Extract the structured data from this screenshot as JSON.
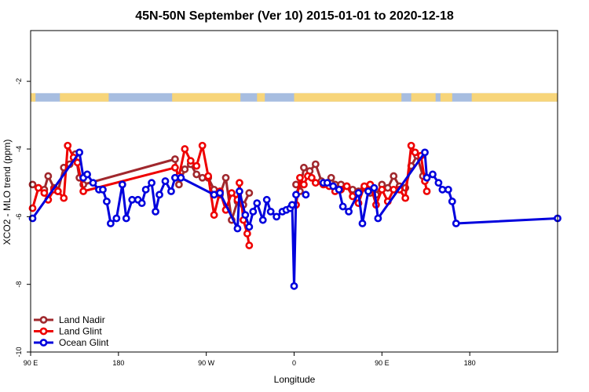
{
  "chart_data": {
    "type": "line",
    "title": "45N-50N September (Ver 10)   2015-01-01 to 2020-12-18",
    "xlabel": "Longitude",
    "ylabel": "XCO2 - MLO trend (ppm)",
    "xlim": [
      0,
      540
    ],
    "ylim": [
      -10,
      -0.5
    ],
    "x_ticks": [
      {
        "value": 0,
        "label": "90 E"
      },
      {
        "value": 90,
        "label": "180"
      },
      {
        "value": 180,
        "label": "90 W"
      },
      {
        "value": 270,
        "label": "0"
      },
      {
        "value": 360,
        "label": "90 E"
      },
      {
        "value": 450,
        "label": "180"
      }
    ],
    "y_ticks": [
      {
        "value": -2,
        "label": "-2"
      },
      {
        "value": -4,
        "label": "-4"
      },
      {
        "value": -6,
        "label": "-6"
      },
      {
        "value": -8,
        "label": "-8"
      },
      {
        "value": -10,
        "label": "-10"
      }
    ],
    "land_ocean_strip": {
      "y_range": [
        -2.6,
        -2.35
      ],
      "land_color": "#f7d57a",
      "ocean_color": "#a7bde0",
      "land_segments": [
        [
          0,
          5
        ],
        [
          30,
          80
        ],
        [
          145,
          215
        ],
        [
          232,
          240
        ],
        [
          270,
          380
        ],
        [
          390,
          415
        ],
        [
          420,
          432
        ],
        [
          452,
          540
        ]
      ]
    },
    "legend": {
      "position": "bottom-left",
      "entries": [
        "Land Nadir",
        "Land Glint",
        "Ocean Glint"
      ]
    },
    "series": [
      {
        "name": "Land Nadir",
        "color": "#a0282d",
        "segments": [
          [
            [
              2,
              -5.05
            ],
            [
              8,
              -5.15
            ],
            [
              14,
              -5.2
            ],
            [
              18,
              -4.8
            ],
            [
              24,
              -5.15
            ],
            [
              28,
              -5.25
            ],
            [
              34,
              -4.55
            ],
            [
              40,
              -4.45
            ],
            [
              46,
              -4.15
            ],
            [
              50,
              -4.85
            ],
            [
              54,
              -5.05
            ],
            [
              148,
              -4.3
            ],
            [
              152,
              -5.05
            ],
            [
              158,
              -4.6
            ],
            [
              164,
              -4.45
            ],
            [
              170,
              -4.75
            ],
            [
              176,
              -4.85
            ],
            [
              182,
              -4.85
            ],
            [
              188,
              -5.2
            ],
            [
              194,
              -5.35
            ],
            [
              200,
              -4.85
            ],
            [
              206,
              -6.1
            ],
            [
              212,
              -5.55
            ],
            [
              218,
              -5.65
            ],
            [
              224,
              -5.3
            ]
          ],
          [
            [
              272,
              -5.05
            ],
            [
              276,
              -5.25
            ],
            [
              280,
              -4.55
            ],
            [
              286,
              -4.65
            ],
            [
              292,
              -4.45
            ],
            [
              298,
              -4.95
            ],
            [
              304,
              -5.05
            ],
            [
              308,
              -4.85
            ],
            [
              312,
              -5.05
            ],
            [
              318,
              -5.05
            ],
            [
              324,
              -5.1
            ],
            [
              330,
              -5.2
            ],
            [
              336,
              -5.25
            ],
            [
              342,
              -5.15
            ],
            [
              348,
              -5.3
            ],
            [
              354,
              -5.35
            ],
            [
              360,
              -5.05
            ],
            [
              366,
              -5.15
            ],
            [
              372,
              -4.8
            ],
            [
              378,
              -5.1
            ],
            [
              384,
              -5.15
            ],
            [
              390,
              -4.5
            ],
            [
              396,
              -4.2
            ],
            [
              402,
              -4.8
            ],
            [
              406,
              -4.85
            ]
          ]
        ]
      },
      {
        "name": "Land Glint",
        "color": "#ee0000",
        "segments": [
          [
            [
              2,
              -5.75
            ],
            [
              8,
              -5.15
            ],
            [
              14,
              -5.3
            ],
            [
              18,
              -5.5
            ],
            [
              24,
              -5.2
            ],
            [
              28,
              -5.25
            ],
            [
              34,
              -5.45
            ],
            [
              38,
              -3.9
            ],
            [
              44,
              -4.25
            ],
            [
              48,
              -4.4
            ],
            [
              54,
              -5.25
            ],
            [
              148,
              -4.55
            ],
            [
              152,
              -4.8
            ],
            [
              158,
              -4.0
            ],
            [
              164,
              -4.35
            ],
            [
              170,
              -4.5
            ],
            [
              176,
              -3.9
            ],
            [
              182,
              -4.8
            ],
            [
              188,
              -5.95
            ],
            [
              194,
              -5.25
            ],
            [
              200,
              -5.8
            ],
            [
              206,
              -5.3
            ],
            [
              212,
              -5.5
            ],
            [
              214,
              -5.0
            ],
            [
              218,
              -6.1
            ],
            [
              222,
              -6.5
            ],
            [
              224,
              -6.85
            ]
          ],
          [
            [
              272,
              -5.65
            ],
            [
              276,
              -4.85
            ],
            [
              280,
              -5.05
            ],
            [
              284,
              -4.8
            ],
            [
              288,
              -4.85
            ],
            [
              292,
              -5.0
            ],
            [
              300,
              -5.05
            ],
            [
              306,
              -5.1
            ],
            [
              312,
              -5.25
            ],
            [
              318,
              -5.2
            ],
            [
              324,
              -5.1
            ],
            [
              330,
              -5.4
            ],
            [
              336,
              -5.6
            ],
            [
              342,
              -5.1
            ],
            [
              348,
              -5.05
            ],
            [
              354,
              -5.65
            ],
            [
              360,
              -5.2
            ],
            [
              366,
              -5.55
            ],
            [
              372,
              -5.2
            ],
            [
              378,
              -5.2
            ],
            [
              384,
              -5.45
            ],
            [
              390,
              -3.9
            ],
            [
              394,
              -4.1
            ],
            [
              400,
              -4.2
            ],
            [
              404,
              -4.95
            ],
            [
              406,
              -5.25
            ]
          ]
        ]
      },
      {
        "name": "Ocean Glint",
        "color": "#0000dd",
        "segments": [
          [
            [
              2,
              -6.05
            ],
            [
              50,
              -4.1
            ],
            [
              54,
              -4.85
            ],
            [
              58,
              -4.75
            ],
            [
              64,
              -5.0
            ],
            [
              70,
              -5.2
            ],
            [
              74,
              -5.2
            ],
            [
              78,
              -5.55
            ],
            [
              82,
              -6.2
            ],
            [
              88,
              -6.05
            ],
            [
              94,
              -5.05
            ],
            [
              98,
              -6.05
            ],
            [
              104,
              -5.5
            ],
            [
              110,
              -5.5
            ],
            [
              114,
              -5.6
            ],
            [
              118,
              -5.2
            ],
            [
              124,
              -5.0
            ],
            [
              128,
              -5.85
            ],
            [
              132,
              -5.35
            ],
            [
              138,
              -4.95
            ],
            [
              144,
              -5.25
            ],
            [
              148,
              -4.85
            ],
            [
              154,
              -4.85
            ],
            [
              188,
              -5.35
            ],
            [
              194,
              -5.3
            ],
            [
              212,
              -6.35
            ],
            [
              214,
              -5.25
            ],
            [
              220,
              -5.95
            ],
            [
              224,
              -6.3
            ],
            [
              228,
              -5.85
            ],
            [
              232,
              -5.6
            ],
            [
              238,
              -6.1
            ],
            [
              242,
              -5.5
            ],
            [
              246,
              -5.85
            ],
            [
              252,
              -6.0
            ],
            [
              258,
              -5.85
            ],
            [
              262,
              -5.8
            ],
            [
              266,
              -5.75
            ],
            [
              268,
              -5.65
            ],
            [
              270,
              -8.05
            ],
            [
              272,
              -5.35
            ]
          ],
          [
            [
              282,
              -5.35
            ]
          ],
          [
            [
              300,
              -5.0
            ],
            [
              304,
              -5.0
            ],
            [
              310,
              -5.1
            ],
            [
              316,
              -5.2
            ],
            [
              320,
              -5.7
            ],
            [
              326,
              -5.85
            ],
            [
              336,
              -5.3
            ],
            [
              340,
              -6.2
            ],
            [
              346,
              -5.25
            ],
            [
              352,
              -5.15
            ],
            [
              356,
              -6.05
            ],
            [
              404,
              -4.1
            ],
            [
              406,
              -4.85
            ],
            [
              412,
              -4.75
            ],
            [
              418,
              -5.0
            ],
            [
              422,
              -5.2
            ],
            [
              428,
              -5.2
            ],
            [
              432,
              -5.55
            ],
            [
              436,
              -6.2
            ],
            [
              540,
              -6.05
            ]
          ]
        ]
      }
    ]
  }
}
